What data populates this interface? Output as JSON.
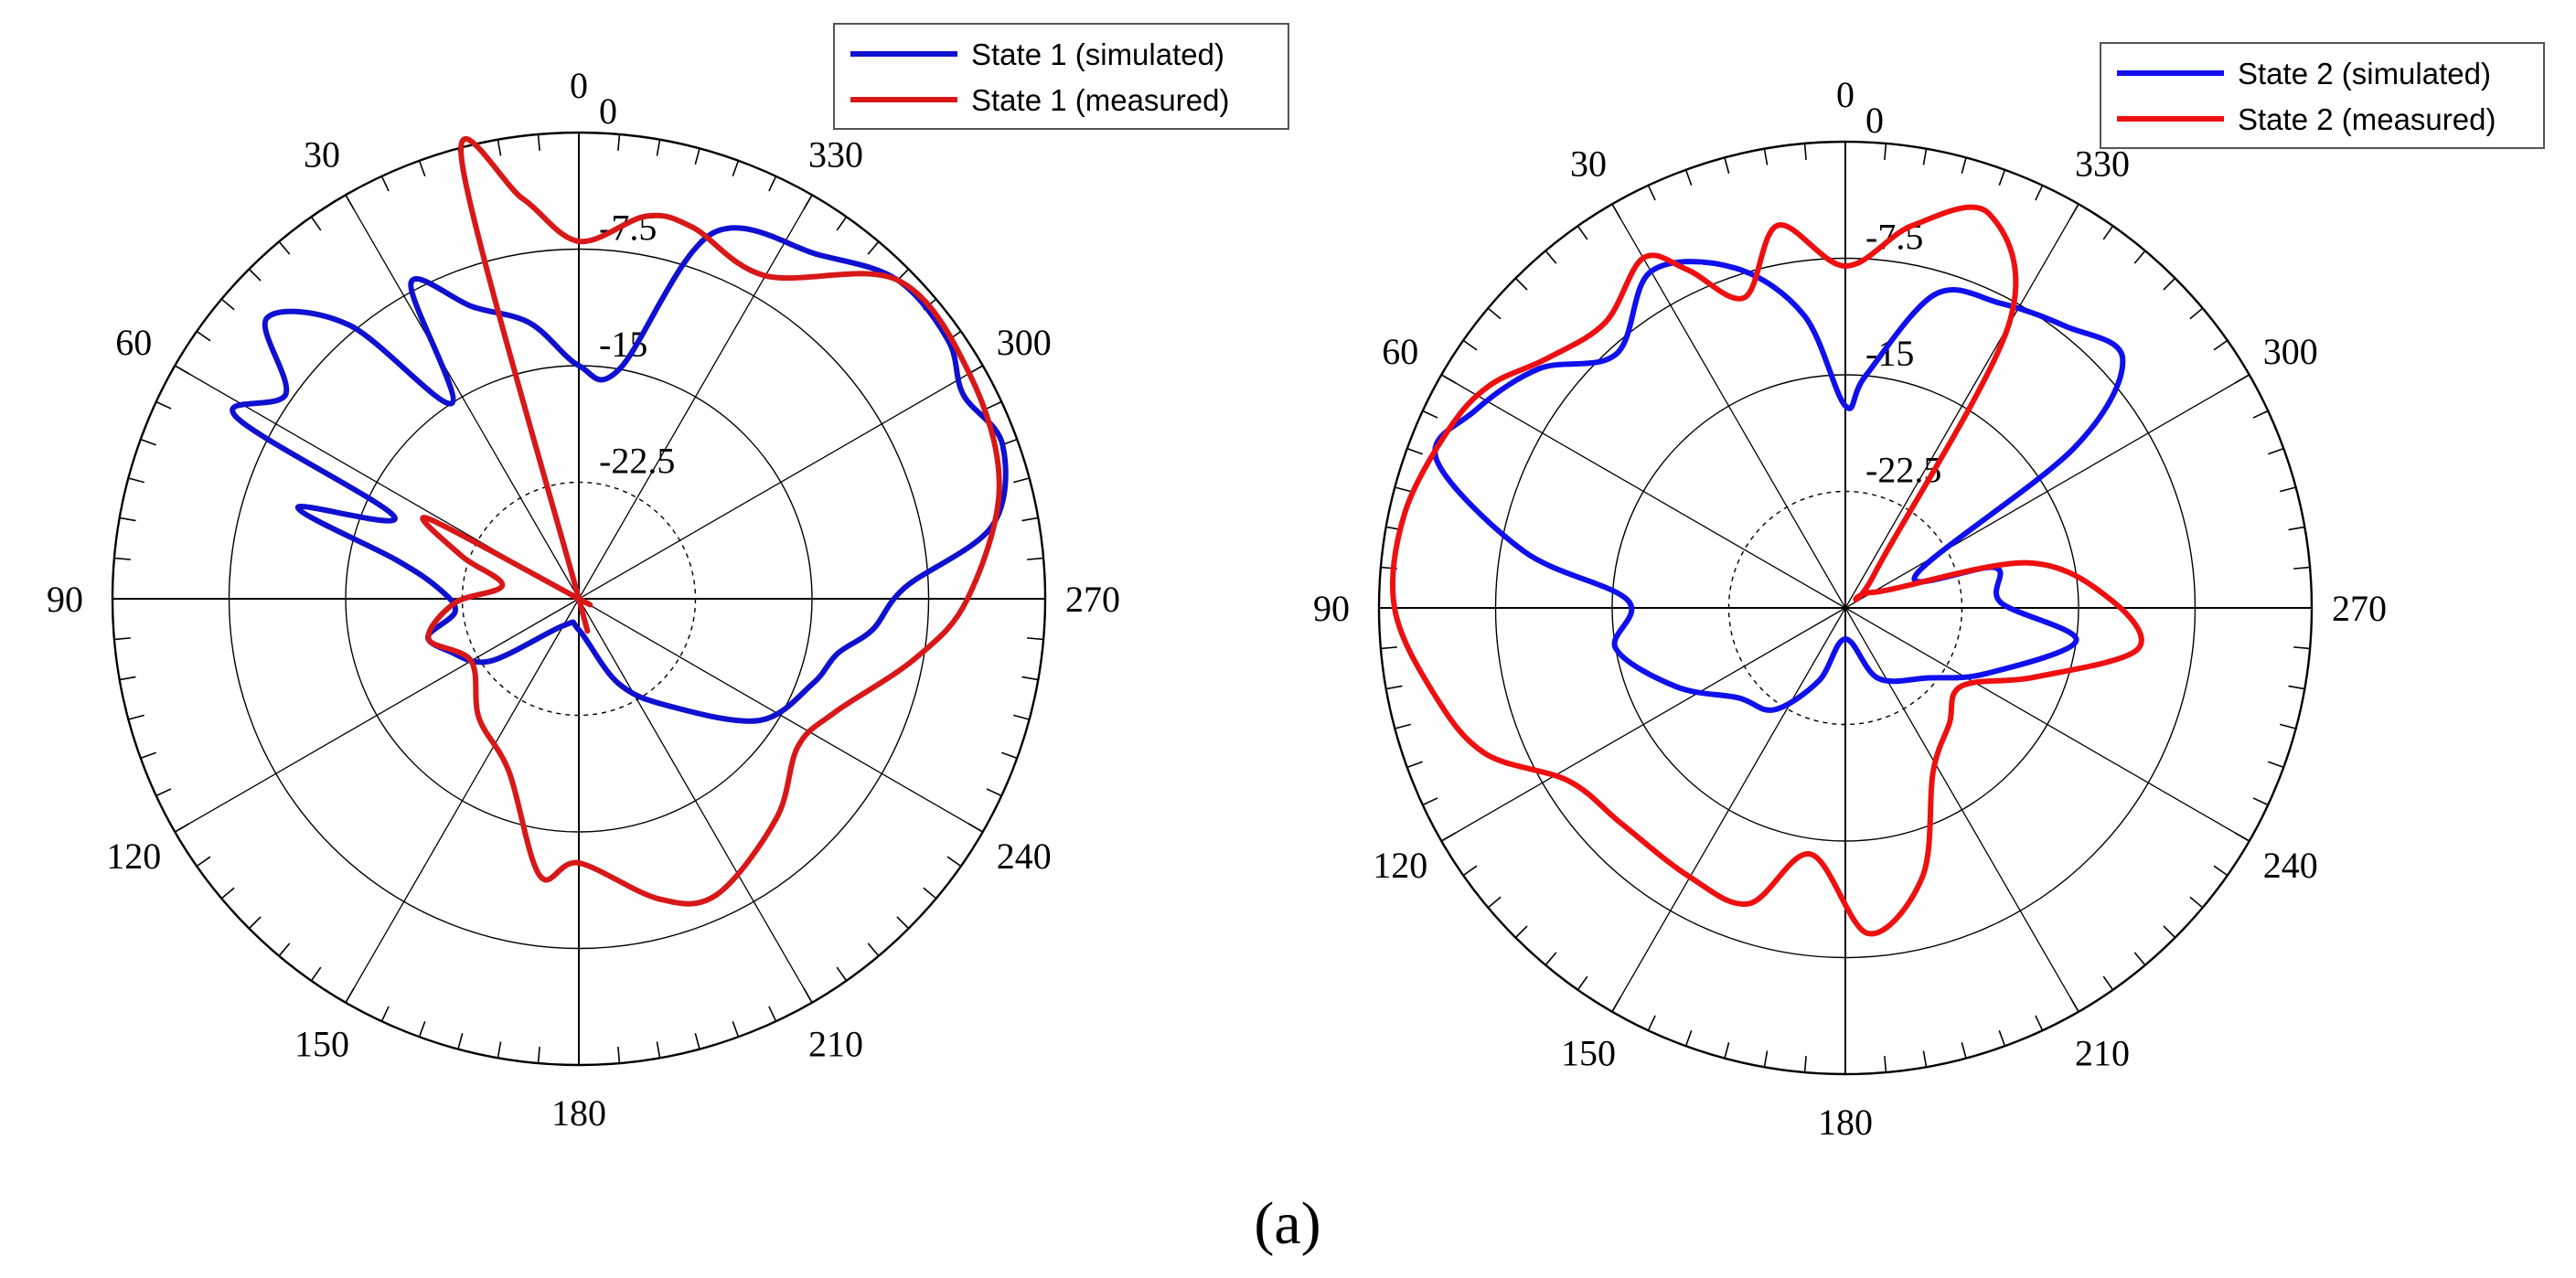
{
  "caption": "(a)",
  "chart_data": [
    {
      "type": "polar-line",
      "angle_labels": [
        "0",
        "30",
        "60",
        "90",
        "120",
        "150",
        "180",
        "210",
        "240",
        "270",
        "300",
        "330"
      ],
      "angle_direction": "counterclockwise",
      "zero_location": "top",
      "radial_labels": [
        "0",
        "-7.5",
        "-15",
        "-22.5"
      ],
      "rlim": [
        -30,
        0
      ],
      "grid": true,
      "legend_position": "top-right",
      "series": [
        {
          "name": "State 1 (simulated)",
          "color": "#1010d0",
          "points": [
            [
              0,
              -15
            ],
            [
              10,
              -12
            ],
            [
              20,
              -10
            ],
            [
              28,
              -7
            ],
            [
              33,
              -15
            ],
            [
              40,
              -7
            ],
            [
              48,
              -3
            ],
            [
              55,
              -7
            ],
            [
              62,
              -5
            ],
            [
              66,
              -17
            ],
            [
              72,
              -11
            ],
            [
              78,
              -18
            ],
            [
              86,
              -21
            ],
            [
              96,
              -22
            ],
            [
              104,
              -20
            ],
            [
              112,
              -21
            ],
            [
              125,
              -23
            ],
            [
              150,
              -28
            ],
            [
              180,
              -28
            ],
            [
              205,
              -24
            ],
            [
              220,
              -21
            ],
            [
              236,
              -16
            ],
            [
              250,
              -14
            ],
            [
              258,
              -13
            ],
            [
              264,
              -11
            ],
            [
              272,
              -9
            ],
            [
              280,
              -3
            ],
            [
              290,
              -1
            ],
            [
              298,
              -2
            ],
            [
              305,
              -1
            ],
            [
              315,
              -1
            ],
            [
              325,
              -3
            ],
            [
              340,
              -5
            ],
            [
              350,
              -15
            ]
          ]
        },
        {
          "name": "State 1 (measured)",
          "color": "#d81818",
          "points": [
            [
              0,
              -7
            ],
            [
              8,
              -4
            ],
            [
              15,
              -1
            ],
            [
              20,
              -30
            ],
            [
              30,
              -30
            ],
            [
              50,
              -30
            ],
            [
              62,
              -19
            ],
            [
              70,
              -22
            ],
            [
              80,
              -25
            ],
            [
              92,
              -22
            ],
            [
              105,
              -20
            ],
            [
              120,
              -22
            ],
            [
              140,
              -20
            ],
            [
              158,
              -18
            ],
            [
              172,
              -12
            ],
            [
              180,
              -13
            ],
            [
              195,
              -10
            ],
            [
              205,
              -9
            ],
            [
              222,
              -11
            ],
            [
              236,
              -13
            ],
            [
              246,
              -12
            ],
            [
              260,
              -8
            ],
            [
              270,
              -5
            ],
            [
              285,
              -2
            ],
            [
              300,
              -1
            ],
            [
              315,
              -1
            ],
            [
              330,
              -6
            ],
            [
              343,
              -5
            ],
            [
              350,
              -5
            ]
          ]
        }
      ]
    },
    {
      "type": "polar-line",
      "angle_labels": [
        "0",
        "30",
        "60",
        "90",
        "120",
        "150",
        "180",
        "210",
        "240",
        "270",
        "300",
        "330"
      ],
      "angle_direction": "counterclockwise",
      "zero_location": "top",
      "radial_labels": [
        "0",
        "-7.5",
        "-15",
        "-22.5"
      ],
      "rlim": [
        -30,
        0
      ],
      "grid": true,
      "legend_position": "top-right",
      "series": [
        {
          "name": "State 2 (simulated)",
          "color": "#1010ee",
          "points": [
            [
              0,
              -17
            ],
            [
              8,
              -11
            ],
            [
              18,
              -7
            ],
            [
              30,
              -5
            ],
            [
              42,
              -8
            ],
            [
              52,
              -5
            ],
            [
              62,
              -3
            ],
            [
              70,
              -2
            ],
            [
              80,
              -9
            ],
            [
              88,
              -16
            ],
            [
              100,
              -15
            ],
            [
              115,
              -18
            ],
            [
              130,
              -21
            ],
            [
              145,
              -22
            ],
            [
              160,
              -25
            ],
            [
              180,
              -28
            ],
            [
              205,
              -25
            ],
            [
              230,
              -23
            ],
            [
              245,
              -20
            ],
            [
              262,
              -15
            ],
            [
              272,
              -20
            ],
            [
              285,
              -20
            ],
            [
              295,
              -25
            ],
            [
              305,
              -12
            ],
            [
              312,
              -6
            ],
            [
              322,
              -7
            ],
            [
              333,
              -8
            ],
            [
              344,
              -9
            ],
            [
              355,
              -15
            ]
          ]
        },
        {
          "name": "State 2 (measured)",
          "color": "#ee1010",
          "points": [
            [
              0,
              -8
            ],
            [
              10,
              -5
            ],
            [
              18,
              -9
            ],
            [
              25,
              -6
            ],
            [
              30,
              -4
            ],
            [
              40,
              -6
            ],
            [
              50,
              -5
            ],
            [
              58,
              -3
            ],
            [
              66,
              -2
            ],
            [
              78,
              -1
            ],
            [
              90,
              -1
            ],
            [
              102,
              -3
            ],
            [
              112,
              -5
            ],
            [
              122,
              -9
            ],
            [
              134,
              -10
            ],
            [
              150,
              -10
            ],
            [
              162,
              -10
            ],
            [
              172,
              -14
            ],
            [
              184,
              -9
            ],
            [
              196,
              -12
            ],
            [
              208,
              -18
            ],
            [
              222,
              -20
            ],
            [
              236,
              -21
            ],
            [
              250,
              -17
            ],
            [
              262,
              -11
            ],
            [
              272,
              -13
            ],
            [
              284,
              -18
            ],
            [
              300,
              -28
            ],
            [
              320,
              -27
            ],
            [
              330,
              -9
            ],
            [
              340,
              -3
            ],
            [
              350,
              -5
            ]
          ]
        }
      ]
    }
  ]
}
